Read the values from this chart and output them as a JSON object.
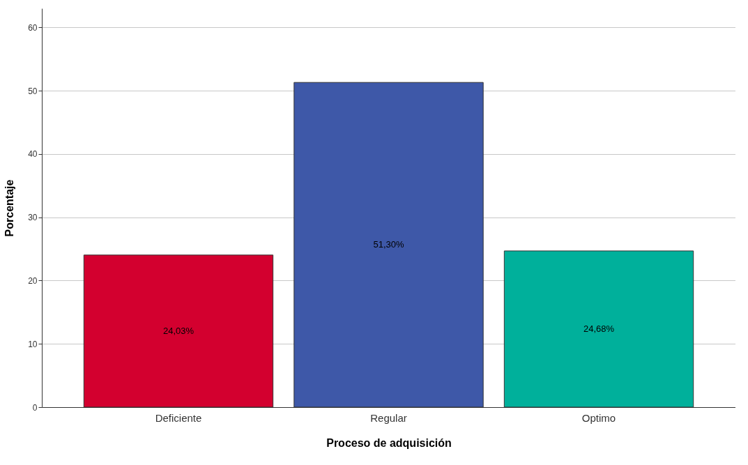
{
  "chart_data": {
    "type": "bar",
    "xlabel": "Proceso de adquisición",
    "ylabel": "Porcentaje",
    "categories": [
      "Deficiente",
      "Regular",
      "Optimo"
    ],
    "values": [
      24.03,
      51.3,
      24.68
    ],
    "colors": [
      "#d3002f",
      "#3e58a8",
      "#00b09b"
    ],
    "value_labels": [
      "24,03%",
      "51,30%",
      "24,68%"
    ],
    "ylim": [
      0,
      63
    ],
    "yticks": [
      0,
      10,
      20,
      30,
      40,
      50,
      60
    ],
    "grid": "y"
  }
}
